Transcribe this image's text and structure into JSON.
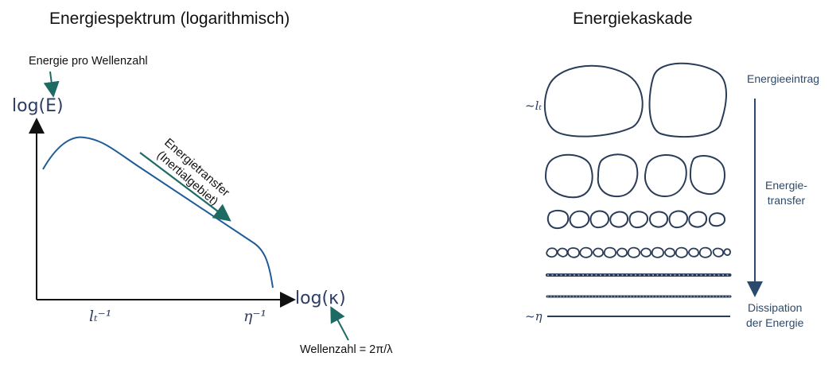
{
  "left": {
    "title": "Energiespektrum (logarithmisch)",
    "y_axis_label": "log(E)",
    "x_axis_label": "log(κ)",
    "y_annotation": "Energie pro Wellenzahl",
    "x_annotation": "Wellenzahl = 2π/λ",
    "tick_lt": "lₜ⁻¹",
    "tick_eta": "η⁻¹",
    "transfer_line1": "Energietransfer",
    "transfer_line2": "(Inertialgebiet)"
  },
  "right": {
    "title": "Energiekaskade",
    "label_lt": "~lₜ",
    "label_eta": "~η",
    "stage_top": "Energieeintrag",
    "stage_mid_line1": "Energie-",
    "stage_mid_line2": "transfer",
    "stage_bottom_line1": "Dissipation",
    "stage_bottom_line2": "der Energie"
  },
  "colors": {
    "curve": "#1f5c99",
    "teal_arrow": "#1e6b63",
    "axes": "#111111",
    "eddies": "#2a3c58",
    "cascade_arrow": "#2c4a6b"
  }
}
